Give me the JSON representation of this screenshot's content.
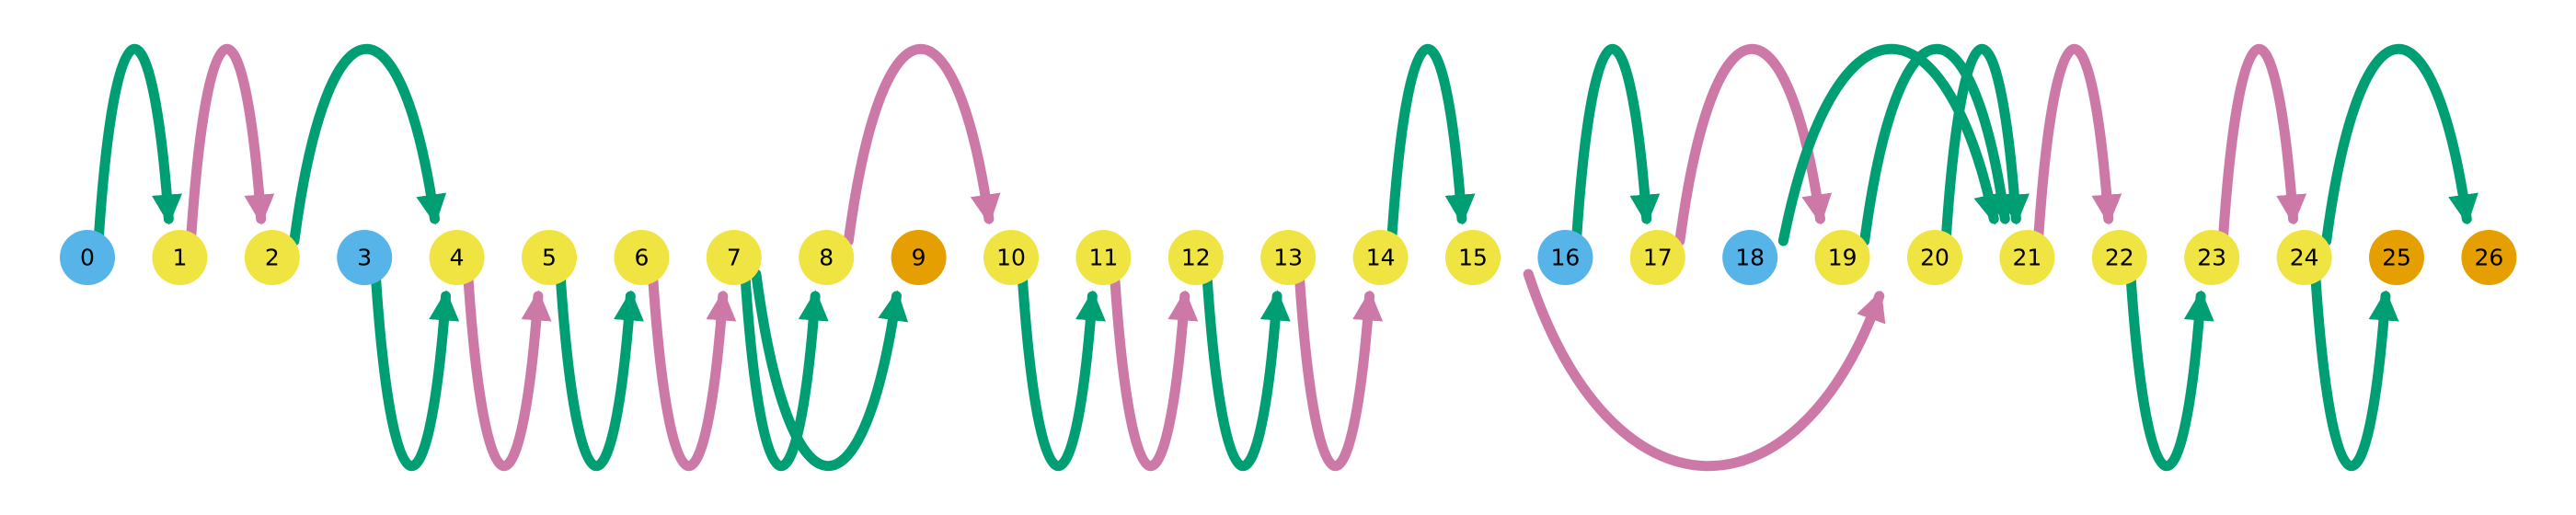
{
  "colors": {
    "background": "#ffffff",
    "node_blue": "#56b4e9",
    "node_yellow": "#f0e442",
    "node_orange": "#e69f00",
    "arc_green": "#009e73",
    "arc_pink": "#cc79a7"
  },
  "nodes": [
    {
      "label": "0",
      "color": "blue"
    },
    {
      "label": "1",
      "color": "yellow"
    },
    {
      "label": "2",
      "color": "yellow"
    },
    {
      "label": "3",
      "color": "blue"
    },
    {
      "label": "4",
      "color": "yellow"
    },
    {
      "label": "5",
      "color": "yellow"
    },
    {
      "label": "6",
      "color": "yellow"
    },
    {
      "label": "7",
      "color": "yellow"
    },
    {
      "label": "8",
      "color": "yellow"
    },
    {
      "label": "9",
      "color": "orange"
    },
    {
      "label": "10",
      "color": "yellow"
    },
    {
      "label": "11",
      "color": "yellow"
    },
    {
      "label": "12",
      "color": "yellow"
    },
    {
      "label": "13",
      "color": "yellow"
    },
    {
      "label": "14",
      "color": "yellow"
    },
    {
      "label": "15",
      "color": "yellow"
    },
    {
      "label": "16",
      "color": "blue"
    },
    {
      "label": "17",
      "color": "yellow"
    },
    {
      "label": "18",
      "color": "blue"
    },
    {
      "label": "19",
      "color": "yellow"
    },
    {
      "label": "20",
      "color": "yellow"
    },
    {
      "label": "21",
      "color": "yellow"
    },
    {
      "label": "22",
      "color": "yellow"
    },
    {
      "label": "23",
      "color": "yellow"
    },
    {
      "label": "24",
      "color": "yellow"
    },
    {
      "label": "25",
      "color": "orange"
    },
    {
      "label": "26",
      "color": "orange"
    }
  ],
  "edges": [
    {
      "from": 0,
      "to": 1,
      "color": "green",
      "side": "above"
    },
    {
      "from": 1,
      "to": 2,
      "color": "pink",
      "side": "above"
    },
    {
      "from": 2,
      "to": 4,
      "color": "green",
      "side": "above"
    },
    {
      "from": 3,
      "to": 4,
      "color": "green",
      "side": "below"
    },
    {
      "from": 4,
      "to": 5,
      "color": "pink",
      "side": "below"
    },
    {
      "from": 5,
      "to": 6,
      "color": "green",
      "side": "below"
    },
    {
      "from": 6,
      "to": 7,
      "color": "pink",
      "side": "below"
    },
    {
      "from": 7,
      "to": 8,
      "color": "green",
      "side": "below"
    },
    {
      "from": 7,
      "to": 9,
      "color": "green",
      "side": "below"
    },
    {
      "from": 8,
      "to": 10,
      "color": "pink",
      "side": "above"
    },
    {
      "from": 10,
      "to": 11,
      "color": "green",
      "side": "below"
    },
    {
      "from": 11,
      "to": 12,
      "color": "pink",
      "side": "below"
    },
    {
      "from": 12,
      "to": 13,
      "color": "green",
      "side": "below"
    },
    {
      "from": 13,
      "to": 14,
      "color": "pink",
      "side": "below"
    },
    {
      "from": 14,
      "to": 15,
      "color": "green",
      "side": "above"
    },
    {
      "from": 15,
      "to": 20,
      "color": "pink",
      "side": "below"
    },
    {
      "from": 16,
      "to": 17,
      "color": "green",
      "side": "above"
    },
    {
      "from": 17,
      "to": 19,
      "color": "pink",
      "side": "above"
    },
    {
      "from": 18,
      "to": 21,
      "color": "green",
      "side": "above"
    },
    {
      "from": 19,
      "to": 21,
      "color": "green",
      "side": "above"
    },
    {
      "from": 20,
      "to": 21,
      "color": "green",
      "side": "above"
    },
    {
      "from": 21,
      "to": 22,
      "color": "pink",
      "side": "above"
    },
    {
      "from": 22,
      "to": 23,
      "color": "green",
      "side": "below"
    },
    {
      "from": 23,
      "to": 24,
      "color": "pink",
      "side": "above"
    },
    {
      "from": 24,
      "to": 25,
      "color": "green",
      "side": "below"
    },
    {
      "from": 24,
      "to": 26,
      "color": "green",
      "side": "above"
    }
  ]
}
